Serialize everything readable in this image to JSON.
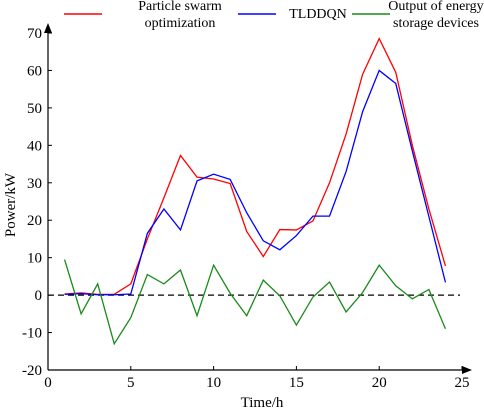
{
  "chart_data": {
    "type": "line",
    "title": "",
    "xlabel": "Time/h",
    "ylabel": "Power/kW",
    "xlim": [
      0,
      25
    ],
    "ylim": [
      -20,
      70
    ],
    "xticks": [
      0,
      5,
      10,
      15,
      20,
      25
    ],
    "yticks": [
      -20,
      -10,
      0,
      10,
      20,
      30,
      40,
      50,
      60,
      70
    ],
    "grid": false,
    "legend": "top",
    "reference_line": {
      "y": 0,
      "style": "dashed",
      "color": "#000000"
    },
    "x": [
      1,
      2,
      3,
      4,
      5,
      6,
      7,
      8,
      9,
      10,
      11,
      12,
      13,
      14,
      15,
      16,
      17,
      18,
      19,
      20,
      21,
      22,
      23,
      24
    ],
    "series": [
      {
        "name": "Particle swarm optimization",
        "color": "#ff0000",
        "values": [
          0.3,
          0.6,
          0.2,
          0.2,
          3.0,
          15.0,
          26.0,
          37.3,
          31.5,
          31.0,
          29.8,
          17.0,
          10.3,
          17.5,
          17.4,
          19.8,
          30.0,
          43.0,
          59.0,
          68.5,
          59.5,
          40.0,
          23.0,
          7.8
        ]
      },
      {
        "name": "TLDDQN",
        "color": "#0000ff",
        "values": [
          0.2,
          0.4,
          0.1,
          0.1,
          0.3,
          16.5,
          23.0,
          17.4,
          30.5,
          32.3,
          30.9,
          22.0,
          14.5,
          12.1,
          15.9,
          21.1,
          21.1,
          33.0,
          49.0,
          60.0,
          56.5,
          38.5,
          21.0,
          3.4
        ]
      },
      {
        "name": "Output of energy storage devices",
        "color": "#1a8a1a",
        "values": [
          9.5,
          -5.0,
          3.0,
          -13.0,
          -6.0,
          5.5,
          3.0,
          6.7,
          -5.5,
          8.0,
          0.5,
          -5.5,
          4.0,
          -0.2,
          -8.0,
          -0.5,
          3.5,
          -4.5,
          0.7,
          8.0,
          2.5,
          -1.0,
          1.5,
          -9.0
        ]
      }
    ]
  }
}
